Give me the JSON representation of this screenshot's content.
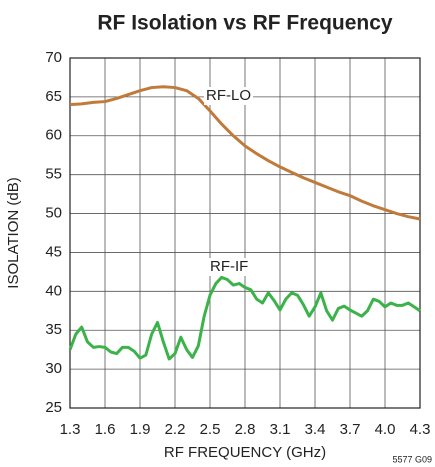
{
  "chart_data": {
    "type": "line",
    "title": "RF Isolation vs RF Frequency",
    "x_label": "RF FREQUENCY (GHz)",
    "y_label": "ISOLATION (dB)",
    "footnote": "5577 G09",
    "annotations": [
      "RF-LO",
      "RF-IF"
    ],
    "xlim": [
      1.3,
      4.3
    ],
    "xticks": [
      1.3,
      1.6,
      1.9,
      2.2,
      2.5,
      2.8,
      3.1,
      3.4,
      3.7,
      {
        "value": 4,
        "label": "4.0"
      },
      4.3
    ],
    "ylim": [
      25,
      70
    ],
    "yticks": [
      25,
      30,
      35,
      40,
      45,
      50,
      55,
      60,
      65,
      70
    ],
    "grid": true,
    "series": [
      {
        "name": "RF-LO",
        "color": "#c07a3a",
        "x": [
          1.3,
          1.4,
          1.5,
          1.6,
          1.7,
          1.8,
          1.9,
          2.0,
          2.1,
          2.2,
          2.3,
          2.4,
          2.5,
          2.6,
          2.7,
          2.8,
          2.9,
          3.0,
          3.1,
          3.2,
          3.3,
          3.4,
          3.5,
          3.6,
          3.7,
          3.8,
          3.9,
          4.0,
          4.1,
          4.2,
          4.3
        ],
        "values": [
          64,
          64.1,
          64.3,
          64.4,
          64.8,
          65.3,
          65.8,
          66.2,
          66.3,
          66.2,
          65.8,
          64.8,
          63.2,
          61.5,
          60,
          58.7,
          57.7,
          56.8,
          56,
          55.3,
          54.6,
          54,
          53.4,
          52.8,
          52.3,
          51.6,
          51,
          50.5,
          50,
          49.6,
          49.3
        ]
      },
      {
        "name": "RF-IF",
        "color": "#3cb34a",
        "x": [
          1.3,
          1.35,
          1.4,
          1.45,
          1.5,
          1.55,
          1.6,
          1.65,
          1.7,
          1.75,
          1.8,
          1.85,
          1.9,
          1.95,
          2.0,
          2.05,
          2.1,
          2.15,
          2.2,
          2.25,
          2.3,
          2.35,
          2.4,
          2.45,
          2.5,
          2.55,
          2.6,
          2.65,
          2.7,
          2.75,
          2.8,
          2.85,
          2.9,
          2.95,
          3.0,
          3.05,
          3.1,
          3.15,
          3.2,
          3.25,
          3.3,
          3.35,
          3.4,
          3.45,
          3.5,
          3.55,
          3.6,
          3.65,
          3.7,
          3.75,
          3.8,
          3.85,
          3.9,
          3.95,
          4.0,
          4.05,
          4.1,
          4.15,
          4.2,
          4.25,
          4.3
        ],
        "values": [
          32.5,
          34.5,
          35.4,
          33.5,
          32.8,
          32.9,
          32.8,
          32.2,
          32.0,
          32.8,
          32.8,
          32.3,
          31.4,
          31.8,
          34.5,
          36,
          33.5,
          31.3,
          32.0,
          34.1,
          32.5,
          31.5,
          33,
          36.8,
          39.5,
          41,
          41.8,
          41.5,
          40.8,
          41,
          40.5,
          40.2,
          39,
          38.5,
          39.8,
          38.8,
          37.6,
          39,
          39.8,
          39.5,
          38.3,
          36.8,
          38,
          39.8,
          37.5,
          36.3,
          37.8,
          38.1,
          37.6,
          37.2,
          36.8,
          37.5,
          39,
          38.7,
          38,
          38.5,
          38.2,
          38.2,
          38.5,
          38,
          37.5
        ]
      }
    ]
  }
}
